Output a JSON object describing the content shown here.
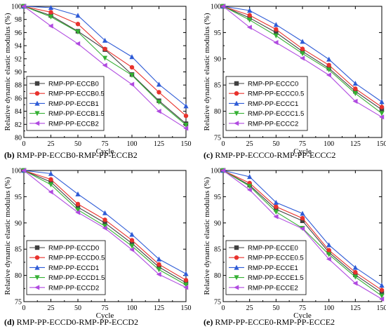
{
  "colors": [
    "#404040",
    "#e8322d",
    "#2e5bd6",
    "#35b034",
    "#b04ae0"
  ],
  "markers": [
    "square",
    "circle",
    "triangle-up",
    "triangle-down",
    "triangle-left"
  ],
  "chart_data": [
    {
      "type": "line",
      "letter": "(b)",
      "caption": "RMP-PP-ECCB0-RMP-PP-ECCB2",
      "xlabel": "Cycle",
      "ylabel": "Relative dynamic elastic modulus (%)",
      "xlim": [
        0,
        150
      ],
      "ylim": [
        80,
        100
      ],
      "xticks": [
        0,
        25,
        50,
        75,
        100,
        125,
        150
      ],
      "yticks": [
        80,
        82,
        84,
        86,
        88,
        90,
        92,
        94,
        96,
        98,
        100
      ],
      "legend_position": "bottom-left",
      "x": [
        0,
        25,
        50,
        75,
        100,
        125,
        150
      ],
      "series": [
        {
          "name": "RMP-PP-ECCB0",
          "values": [
            100,
            98.6,
            96.2,
            93.4,
            89.6,
            85.6,
            82.1
          ]
        },
        {
          "name": "RMP-PP-ECCB0.5",
          "values": [
            100,
            99.1,
            97.3,
            93.5,
            90.7,
            86.9,
            83.3
          ]
        },
        {
          "name": "RMP-PP-ECCB1",
          "values": [
            100,
            99.8,
            98.6,
            94.8,
            92.3,
            88.1,
            84.8
          ]
        },
        {
          "name": "RMP-PP-ECCB1.5",
          "values": [
            100,
            98.4,
            96.1,
            92.1,
            89.5,
            85.4,
            81.9
          ]
        },
        {
          "name": "RMP-PP-ECCB2",
          "values": [
            100,
            97.0,
            94.3,
            91.0,
            88.1,
            84.0,
            81.4
          ]
        }
      ]
    },
    {
      "type": "line",
      "letter": "(c)",
      "caption": "RMP-PP-ECCC0-RMP-PP-ECCC2",
      "xlabel": "Cycle",
      "ylabel": "Relative dynamic elastic modulus (%)",
      "xlim": [
        0,
        150
      ],
      "ylim": [
        75,
        100
      ],
      "xticks": [
        0,
        25,
        50,
        75,
        100,
        125,
        150
      ],
      "yticks": [
        75,
        80,
        85,
        90,
        95,
        100
      ],
      "legend_position": "bottom-left",
      "x": [
        0,
        25,
        50,
        75,
        100,
        125,
        150
      ],
      "series": [
        {
          "name": "RMP-PP-ECCC0",
          "values": [
            100,
            97.8,
            95.0,
            91.4,
            88.2,
            83.8,
            80.3
          ]
        },
        {
          "name": "RMP-PP-ECCC0.5",
          "values": [
            100,
            98.3,
            95.6,
            91.9,
            88.8,
            84.3,
            80.8
          ]
        },
        {
          "name": "RMP-PP-ECCC1",
          "values": [
            100,
            99.2,
            96.5,
            93.3,
            89.9,
            85.3,
            81.8
          ]
        },
        {
          "name": "RMP-PP-ECCC1.5",
          "values": [
            100,
            97.4,
            94.4,
            91.0,
            87.9,
            83.4,
            79.6
          ]
        },
        {
          "name": "RMP-PP-ECCC2",
          "values": [
            100,
            96.0,
            93.1,
            90.1,
            86.9,
            81.9,
            78.9
          ]
        }
      ]
    },
    {
      "type": "line",
      "letter": "(d)",
      "caption": "RMP-PP-ECCD0-RMP-PP-ECCD2",
      "xlabel": "Cycle",
      "ylabel": "Relative dynamic elastic modulus (%)",
      "xlim": [
        0,
        150
      ],
      "ylim": [
        75,
        100
      ],
      "xticks": [
        0,
        25,
        50,
        75,
        100,
        125,
        150
      ],
      "yticks": [
        75,
        80,
        85,
        90,
        95,
        100
      ],
      "legend_position": "bottom-left",
      "x": [
        0,
        25,
        50,
        75,
        100,
        125,
        150
      ],
      "series": [
        {
          "name": "RMP-PP-ECCD0",
          "values": [
            100,
            97.8,
            93.0,
            90.0,
            86.1,
            81.6,
            78.6
          ]
        },
        {
          "name": "RMP-PP-ECCD0.5",
          "values": [
            100,
            98.3,
            93.6,
            90.6,
            86.7,
            82.1,
            79.1
          ]
        },
        {
          "name": "RMP-PP-ECCD1",
          "values": [
            100,
            99.4,
            95.5,
            91.9,
            87.8,
            83.1,
            80.3
          ]
        },
        {
          "name": "RMP-PP-ECCD1.5",
          "values": [
            100,
            97.3,
            92.5,
            89.4,
            85.6,
            81.1,
            78.2
          ]
        },
        {
          "name": "RMP-PP-ECCD2",
          "values": [
            100,
            95.9,
            92.0,
            89.0,
            84.9,
            80.2,
            77.7
          ]
        }
      ]
    },
    {
      "type": "line",
      "letter": "(e)",
      "caption": "RMP-PP-ECCE0-RMP-PP-ECCE2",
      "xlabel": "Cycle",
      "ylabel": "Relative dynamic elastic modulus (%)",
      "xlim": [
        0,
        150
      ],
      "ylim": [
        75,
        100
      ],
      "xticks": [
        0,
        25,
        50,
        75,
        100,
        125,
        150
      ],
      "yticks": [
        75,
        80,
        85,
        90,
        95,
        100
      ],
      "legend_position": "bottom-left",
      "x": [
        0,
        25,
        50,
        75,
        100,
        125,
        150
      ],
      "series": [
        {
          "name": "RMP-PP-ECCE0",
          "values": [
            100,
            97.2,
            92.6,
            90.4,
            84.4,
            80.1,
            76.7
          ]
        },
        {
          "name": "RMP-PP-ECCE0.5",
          "values": [
            100,
            97.6,
            93.1,
            90.9,
            84.8,
            80.6,
            77.2
          ]
        },
        {
          "name": "RMP-PP-ECCE1",
          "values": [
            100,
            98.8,
            93.9,
            91.8,
            85.8,
            81.5,
            78.1
          ]
        },
        {
          "name": "RMP-PP-ECCE1.5",
          "values": [
            100,
            97.0,
            92.1,
            89.0,
            84.0,
            79.7,
            76.1
          ]
        },
        {
          "name": "RMP-PP-ECCE2",
          "values": [
            100,
            96.3,
            91.2,
            88.9,
            83.1,
            78.5,
            75.5
          ]
        }
      ]
    }
  ]
}
